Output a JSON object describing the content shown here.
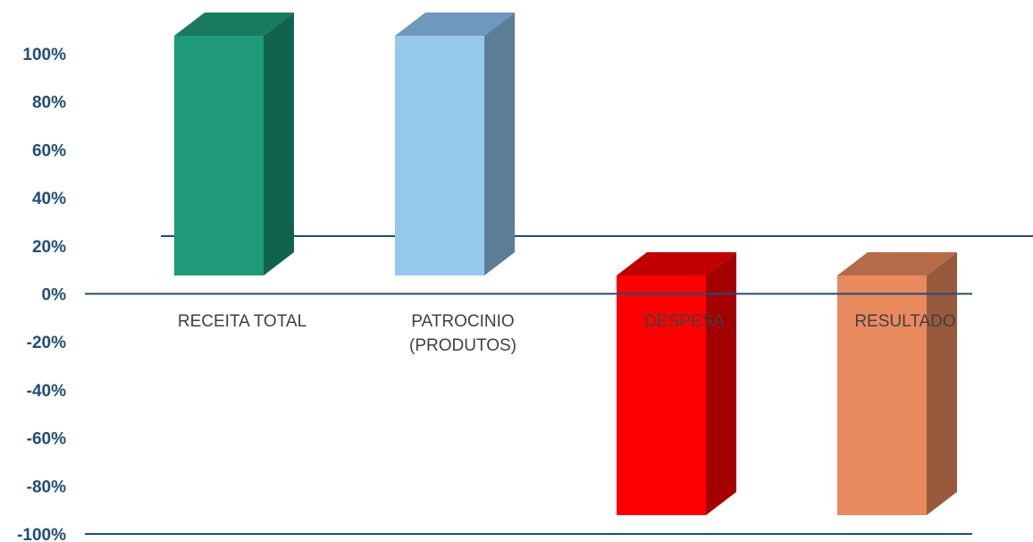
{
  "chart_data": {
    "type": "bar",
    "title": "",
    "xlabel": "",
    "ylabel": "",
    "categories": [
      [
        "RECEITA TOTAL"
      ],
      [
        "PATROCINIO",
        "(PRODUTOS)"
      ],
      [
        "DESPESA"
      ],
      [
        "RESULTADO"
      ]
    ],
    "values": [
      100,
      100,
      -100,
      -100
    ],
    "ylim": [
      -100,
      100
    ],
    "yticks": [
      "100%",
      "80%",
      "60%",
      "40%",
      "20%",
      "0%",
      "-20%",
      "-40%",
      "-60%",
      "-80%",
      "-100%"
    ],
    "grid": false,
    "legend": "none",
    "style": "3d-column",
    "colors": {
      "front": [
        "#1e9a7a",
        "#95c8ec",
        "#ff0000",
        "#e98a5e"
      ],
      "top": [
        "#1a7a5f",
        "#6e98bc",
        "#c00000",
        "#b56b48"
      ],
      "side": [
        "#12634d",
        "#5b7e96",
        "#a50000",
        "#99593d"
      ],
      "axis": "#1f4e79"
    }
  }
}
